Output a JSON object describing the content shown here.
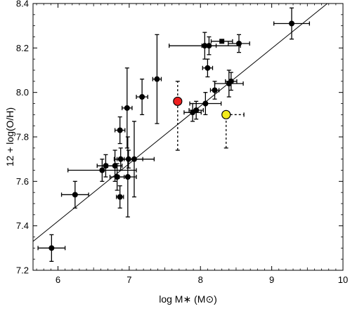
{
  "chart_data": {
    "type": "scatter",
    "xlabel": "log M∗ (M⊙)",
    "ylabel": "12 + log(O/H)",
    "xlim": [
      5.65,
      10.0
    ],
    "ylim": [
      7.2,
      8.4
    ],
    "x_ticks": [
      6,
      7,
      8,
      9,
      10
    ],
    "y_ticks": [
      7.2,
      7.4,
      7.6,
      7.8,
      8.0,
      8.2,
      8.4
    ],
    "x_tick_labels": [
      "6",
      "7",
      "8",
      "9",
      "10"
    ],
    "y_tick_labels": [
      "7.2",
      "7.4",
      "7.6",
      "7.8",
      "8.0",
      "8.2",
      "8.4"
    ],
    "grid": false,
    "legend": false,
    "fit_line": {
      "x": [
        5.65,
        9.78
      ],
      "y": [
        7.33,
        8.4
      ],
      "color": "#000000"
    },
    "series": [
      {
        "marker_color": "#000000",
        "points": [
          {
            "x": 5.91,
            "y": 7.3,
            "xerr": 0.19,
            "yerr": 0.06
          },
          {
            "x": 6.24,
            "y": 7.54,
            "xerr": 0.19,
            "yerr": 0.06
          },
          {
            "x": 6.62,
            "y": 7.65,
            "xerr": 0.48,
            "yerr": 0.05
          },
          {
            "x": 6.67,
            "y": 7.67,
            "xerr": 0.12,
            "yerr": 0.05
          },
          {
            "x": 6.8,
            "y": 7.67,
            "xerr": 0.1,
            "yerr": 0.07
          },
          {
            "x": 6.83,
            "y": 7.62,
            "xerr": 0.1,
            "yerr": 0.06
          },
          {
            "x": 6.87,
            "y": 7.83,
            "xerr": 0.07,
            "yerr": 0.06
          },
          {
            "x": 6.87,
            "y": 7.53,
            "xerr": 0.05,
            "yerr": 0.05
          },
          {
            "x": 6.88,
            "y": 7.7,
            "xerr": 0.05,
            "yerr": 0.05
          },
          {
            "x": 6.97,
            "y": 7.93,
            "xerr": 0.07,
            "yerr": 0.18
          },
          {
            "x": 6.98,
            "y": 7.62,
            "xerr": 0.12,
            "yerr": 0.18
          },
          {
            "x": 6.99,
            "y": 7.7,
            "xerr": 0.2,
            "yerr": 0.04
          },
          {
            "x": 7.07,
            "y": 7.7,
            "xerr": 0.28,
            "yerr": 0.17
          },
          {
            "x": 7.18,
            "y": 7.98,
            "xerr": 0.08,
            "yerr": 0.08
          },
          {
            "x": 7.39,
            "y": 8.06,
            "xerr": 0.06,
            "yerr": 0.2
          },
          {
            "x": 7.89,
            "y": 7.91,
            "xerr": 0.12,
            "yerr": 0.04
          },
          {
            "x": 7.94,
            "y": 7.92,
            "xerr": 0.1,
            "yerr": 0.04
          },
          {
            "x": 8.06,
            "y": 8.21,
            "xerr": 0.5,
            "yerr": 0.06
          },
          {
            "x": 8.07,
            "y": 7.95,
            "xerr": 0.22,
            "yerr": 0.05
          },
          {
            "x": 8.1,
            "y": 8.11,
            "xerr": 0.07,
            "yerr": 0.04
          },
          {
            "x": 8.12,
            "y": 8.21,
            "xerr": 0.1,
            "yerr": 0.04
          },
          {
            "x": 8.2,
            "y": 8.01,
            "xerr": 0.06,
            "yerr": 0.04
          },
          {
            "x": 8.3,
            "y": 8.23,
            "xerr": 0.15,
            "yerr": 0.0
          },
          {
            "x": 8.4,
            "y": 8.04,
            "xerr": 0.2,
            "yerr": 0.06
          },
          {
            "x": 8.43,
            "y": 8.05,
            "xerr": 0.08,
            "yerr": 0.04
          },
          {
            "x": 8.54,
            "y": 8.22,
            "xerr": 0.15,
            "yerr": 0.04
          },
          {
            "x": 9.28,
            "y": 8.31,
            "xerr": 0.25,
            "yerr": 0.07
          }
        ]
      },
      {
        "marker_color": "#ee2020",
        "points": [
          {
            "x": 7.68,
            "y": 7.96,
            "xerr": 0.0,
            "yerr_low": 0.22,
            "yerr_high": 0.09,
            "yerr_style": "dashed"
          }
        ]
      },
      {
        "marker_color": "#f4ec1c",
        "points": [
          {
            "x": 8.36,
            "y": 7.9,
            "xerr_low": 0.0,
            "xerr_high": 0.25,
            "xerr_style": "dashed",
            "yerr_low": 0.15,
            "yerr_high": 0.0,
            "yerr_style": "dashed"
          }
        ]
      }
    ]
  }
}
